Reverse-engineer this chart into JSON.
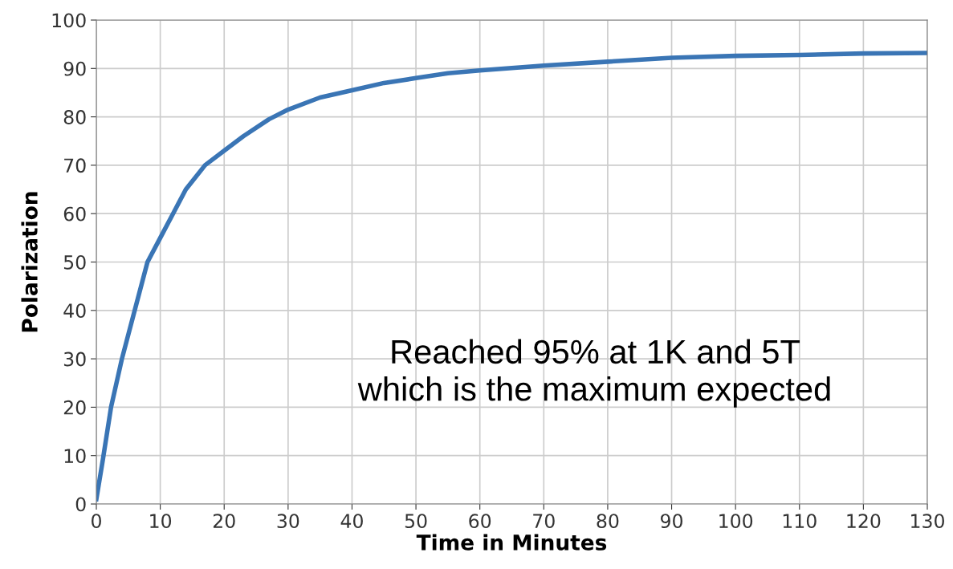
{
  "chart_data": {
    "type": "line",
    "xlabel": "Time in Minutes",
    "ylabel": "Polarization",
    "annotations": [
      "Reached 95% at 1K and 5T\nwhich is the maximum expected"
    ],
    "x": [
      0,
      1,
      2.3,
      4,
      6,
      8,
      10,
      12,
      14,
      17,
      20,
      23,
      27,
      30,
      35,
      40,
      45,
      50,
      55,
      60,
      70,
      80,
      90,
      100,
      110,
      120,
      130
    ],
    "series": [
      {
        "color": "#3a75b5",
        "values": [
          1,
          9,
          20,
          30,
          40,
          50,
          55,
          60,
          65,
          70,
          73,
          76,
          79.5,
          81.5,
          84,
          85.5,
          87,
          88,
          89,
          89.6,
          90.6,
          91.4,
          92.2,
          92.6,
          92.8,
          93.1,
          93.2
        ]
      }
    ],
    "xlim": [
      0,
      130
    ],
    "xticks": [
      0,
      10,
      20,
      30,
      40,
      50,
      60,
      70,
      80,
      90,
      100,
      110,
      120,
      130
    ],
    "ylim": [
      0,
      100
    ],
    "yticks": [
      0,
      10,
      20,
      30,
      40,
      50,
      60,
      70,
      80,
      90,
      100
    ],
    "grid": true,
    "legend": false,
    "marker": "none",
    "line_style": "solid"
  }
}
